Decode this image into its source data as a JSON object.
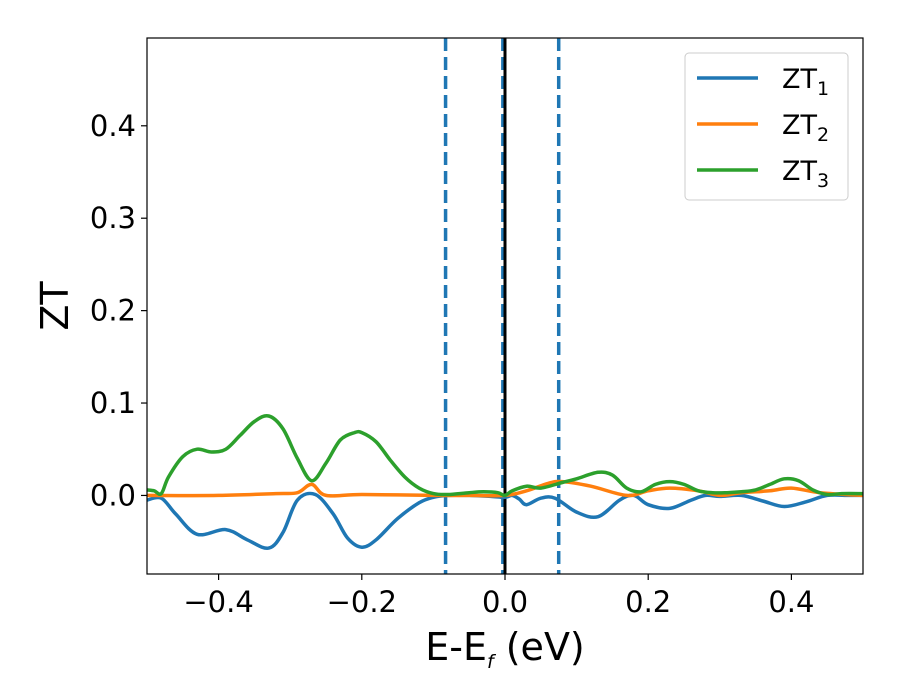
{
  "chart_data": {
    "type": "line",
    "xlabel": {
      "main": "E-E",
      "sub": "f",
      "unit": " (eV)"
    },
    "ylabel": "ZT",
    "xlim": [
      -0.5,
      0.5
    ],
    "ylim": [
      -0.085,
      0.495
    ],
    "x_ticks": [
      -0.4,
      -0.2,
      0.0,
      0.2,
      0.4
    ],
    "x_tick_labels": [
      "−0.4",
      "−0.2",
      "0.0",
      "0.2",
      "0.4"
    ],
    "y_ticks": [
      0.0,
      0.1,
      0.2,
      0.3,
      0.4
    ],
    "y_tick_labels": [
      "0.0",
      "0.1",
      "0.2",
      "0.3",
      "0.4"
    ],
    "grid": false,
    "legend_position": "top-right",
    "vertical_lines": [
      {
        "x": -0.083,
        "style": "dashed",
        "color": "#1f77b4"
      },
      {
        "x": -0.003,
        "style": "dashed",
        "color": "#1f77b4"
      },
      {
        "x": 0.075,
        "style": "dashed",
        "color": "#1f77b4"
      },
      {
        "x": 0.0,
        "style": "solid",
        "color": "#000000"
      }
    ],
    "series": [
      {
        "name": "ZT",
        "sub": "1",
        "color": "#1f77b4",
        "x": [
          -0.5,
          -0.48,
          -0.46,
          -0.43,
          -0.39,
          -0.36,
          -0.33,
          -0.31,
          -0.29,
          -0.265,
          -0.24,
          -0.22,
          -0.2,
          -0.18,
          -0.15,
          -0.12,
          -0.1,
          -0.08,
          -0.05,
          -0.02,
          0.0,
          0.01,
          0.02,
          0.03,
          0.05,
          0.07,
          0.1,
          0.13,
          0.16,
          0.18,
          0.2,
          0.23,
          0.26,
          0.28,
          0.3,
          0.33,
          0.36,
          0.39,
          0.42,
          0.45,
          0.48,
          0.5
        ],
        "y": [
          -0.005,
          -0.003,
          -0.02,
          -0.042,
          -0.037,
          -0.048,
          -0.057,
          -0.04,
          -0.005,
          0.001,
          -0.02,
          -0.046,
          -0.056,
          -0.048,
          -0.025,
          -0.008,
          -0.002,
          0.0,
          0.0,
          -0.001,
          -0.002,
          0.0,
          -0.004,
          -0.01,
          -0.003,
          -0.003,
          -0.018,
          -0.023,
          -0.005,
          0.0,
          -0.01,
          -0.014,
          -0.005,
          0.0,
          -0.001,
          0.0,
          -0.006,
          -0.012,
          -0.007,
          0.0,
          0.0,
          0.0
        ]
      },
      {
        "name": "ZT",
        "sub": "2",
        "color": "#ff7f0e",
        "x": [
          -0.5,
          -0.4,
          -0.32,
          -0.29,
          -0.27,
          -0.25,
          -0.2,
          -0.1,
          -0.05,
          0.0,
          0.03,
          0.06,
          0.08,
          0.12,
          0.17,
          0.2,
          0.23,
          0.27,
          0.3,
          0.33,
          0.37,
          0.4,
          0.44,
          0.5
        ],
        "y": [
          0.0,
          0.0,
          0.002,
          0.003,
          0.012,
          0.0,
          0.001,
          0.0,
          0.0,
          0.0,
          0.005,
          0.013,
          0.015,
          0.01,
          0.0,
          0.005,
          0.008,
          0.005,
          0.0,
          0.003,
          0.005,
          0.008,
          0.003,
          0.0
        ]
      },
      {
        "name": "ZT",
        "sub": "3",
        "color": "#2ca02c",
        "x": [
          -0.5,
          -0.49,
          -0.48,
          -0.47,
          -0.45,
          -0.43,
          -0.41,
          -0.39,
          -0.37,
          -0.35,
          -0.33,
          -0.31,
          -0.29,
          -0.27,
          -0.25,
          -0.23,
          -0.21,
          -0.2,
          -0.18,
          -0.16,
          -0.14,
          -0.12,
          -0.1,
          -0.08,
          -0.05,
          -0.03,
          -0.01,
          0.0,
          0.01,
          0.03,
          0.05,
          0.08,
          0.1,
          0.13,
          0.15,
          0.17,
          0.19,
          0.21,
          0.23,
          0.25,
          0.27,
          0.29,
          0.31,
          0.33,
          0.35,
          0.37,
          0.39,
          0.41,
          0.43,
          0.45,
          0.47,
          0.5
        ],
        "y": [
          0.006,
          0.005,
          0.002,
          0.02,
          0.042,
          0.05,
          0.047,
          0.05,
          0.065,
          0.08,
          0.086,
          0.072,
          0.04,
          0.016,
          0.035,
          0.06,
          0.068,
          0.068,
          0.058,
          0.038,
          0.02,
          0.008,
          0.002,
          0.001,
          0.003,
          0.004,
          0.003,
          0.0,
          0.005,
          0.01,
          0.008,
          0.014,
          0.018,
          0.025,
          0.022,
          0.008,
          0.004,
          0.012,
          0.015,
          0.012,
          0.005,
          0.003,
          0.003,
          0.004,
          0.006,
          0.012,
          0.018,
          0.016,
          0.006,
          0.001,
          0.002,
          0.002
        ]
      }
    ]
  }
}
